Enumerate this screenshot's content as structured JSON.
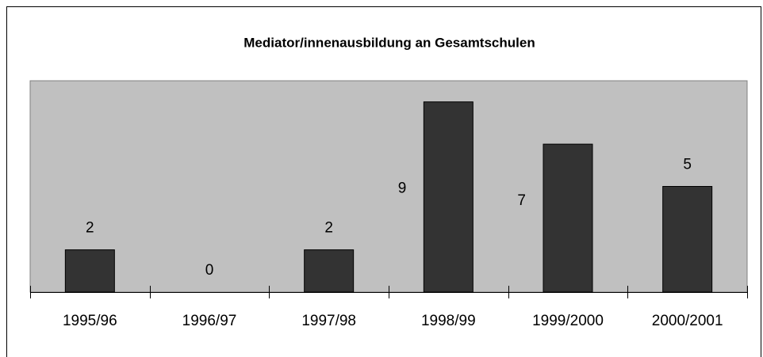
{
  "chart_data": {
    "type": "bar",
    "title": "Mediator/innenausbildung an Gesamtschulen",
    "categories": [
      "1995/96",
      "1996/97",
      "1997/98",
      "1998/99",
      "1999/2000",
      "2000/2001"
    ],
    "values": [
      2,
      0,
      2,
      9,
      7,
      5
    ],
    "color": "#333333",
    "background": "#c0c0c0",
    "ylim": [
      0,
      10
    ],
    "grid": false
  }
}
